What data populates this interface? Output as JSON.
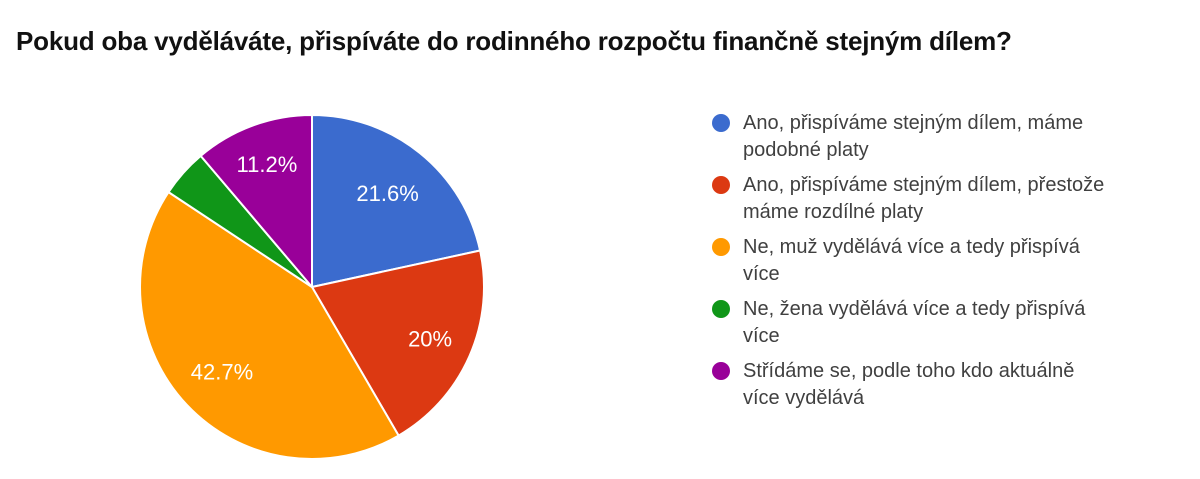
{
  "chart_data": {
    "type": "pie",
    "title": "Pokud oba vyděláváte, přispíváte do rodinného rozpočtu finančně stejným dílem?",
    "labels": [
      "Ano, přispíváme stejným dílem, máme podobné platy",
      "Ano, přispíváme stejným dílem, přestože máme rozdílné platy",
      "Ne, muž vydělává více a tedy přispívá více",
      "Ne, žena vydělává více a tedy přispívá více",
      "Střídáme se, podle toho kdo aktuálně více vydělává"
    ],
    "values": [
      21.6,
      20,
      42.7,
      4.5,
      11.2
    ],
    "unit": "%",
    "slice_labels": [
      "21.6%",
      "20%",
      "42.7%",
      "",
      "11.2%"
    ],
    "colors": [
      "#3B6BCE",
      "#DC3912",
      "#FF9900",
      "#109618",
      "#990099"
    ],
    "start_angle_deg": 0,
    "direction": "clockwise",
    "legend_position": "right",
    "slice_border_color": "#FFFFFF",
    "label_text_color": "#FFFFFF"
  },
  "legend": {
    "items": [
      {
        "text": "Ano, přispíváme stejným dílem, máme\npodobné platy"
      },
      {
        "text": "Ano, přispíváme stejným dílem, přestože\nmáme rozdílné platy"
      },
      {
        "text": "Ne, muž vydělává více a tedy přispívá\nvíce"
      },
      {
        "text": "Ne, žena vydělává více a tedy přispívá\nvíce"
      },
      {
        "text": "Střídáme se, podle toho kdo aktuálně\nvíce vydělává"
      }
    ]
  }
}
